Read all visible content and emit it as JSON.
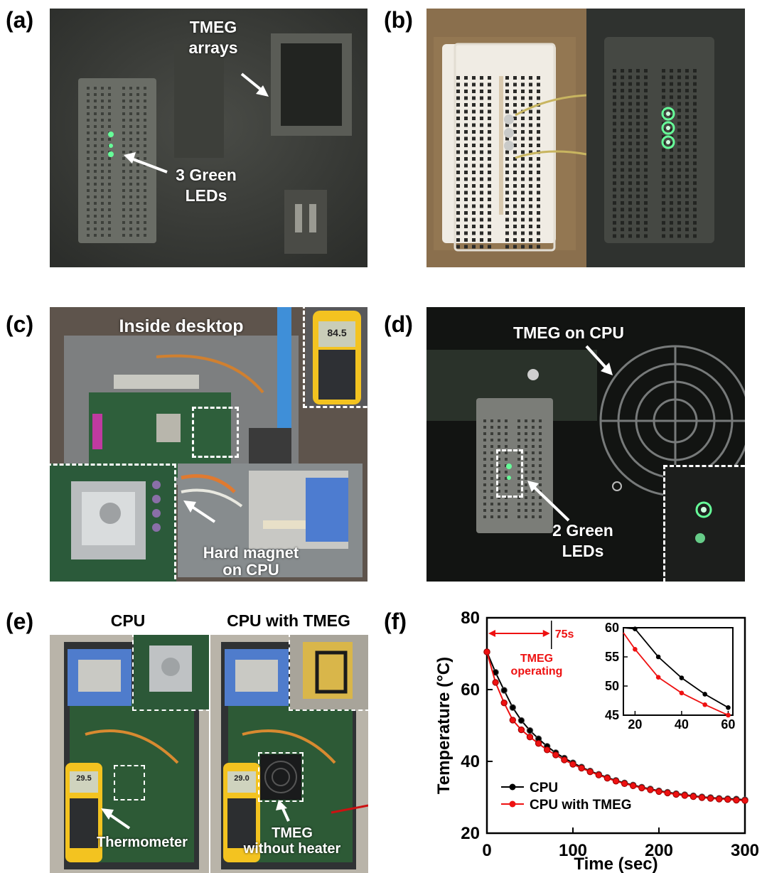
{
  "panels": {
    "a": {
      "label": "(a)",
      "annotations": {
        "tmeg": "TMEG\narrays",
        "leds": "3 Green\nLEDs"
      }
    },
    "b": {
      "label": "(b)"
    },
    "c": {
      "label": "(c)",
      "annotations": {
        "inside": "Inside desktop",
        "magnet": "Hard magnet\non CPU",
        "meter": "84.5"
      }
    },
    "d": {
      "label": "(d)",
      "annotations": {
        "tmeg": "TMEG on CPU",
        "leds": "2 Green\nLEDs"
      }
    },
    "e": {
      "label": "(e)",
      "titles": {
        "left": "CPU",
        "right": "CPU with TMEG"
      },
      "annotations": {
        "thermometer": "Thermometer",
        "tmeg": "TMEG\nwithout heater",
        "meter_left": "29.5",
        "meter_right": "29.0"
      }
    },
    "f": {
      "label": "(f)"
    }
  },
  "colors": {
    "cpu": "#000000",
    "tmeg": "#ee1111",
    "led_green": "#66ff99"
  },
  "chart_data": [
    {
      "type": "line",
      "xlabel": "Time (sec)",
      "ylabel": "Temperature (°C)",
      "xlim": [
        0,
        300
      ],
      "ylim": [
        20,
        80
      ],
      "xticks": [
        0,
        100,
        200,
        300
      ],
      "yticks": [
        20,
        40,
        60,
        80
      ],
      "annotation": {
        "label": "75s",
        "text": "TMEG\noperating",
        "x_start": 0,
        "x_end": 75
      },
      "legend": "bottom-left",
      "x": [
        0,
        10,
        20,
        30,
        40,
        50,
        60,
        70,
        80,
        90,
        100,
        110,
        120,
        130,
        140,
        150,
        160,
        170,
        180,
        190,
        200,
        210,
        220,
        230,
        240,
        250,
        260,
        270,
        280,
        290,
        300
      ],
      "series": [
        {
          "name": "CPU",
          "color": "#000000",
          "values": [
            70.5,
            64.8,
            59.8,
            55.0,
            51.4,
            48.6,
            46.3,
            44.2,
            42.4,
            40.9,
            39.6,
            38.4,
            37.3,
            36.4,
            35.5,
            34.7,
            34.0,
            33.4,
            32.8,
            32.3,
            31.8,
            31.4,
            31.0,
            30.7,
            30.4,
            30.1,
            29.9,
            29.7,
            29.6,
            29.5,
            29.3
          ]
        },
        {
          "name": "CPU with TMEG",
          "color": "#ee1111",
          "values": [
            70.5,
            62.0,
            56.3,
            51.5,
            48.8,
            46.8,
            45.0,
            43.2,
            41.8,
            40.4,
            39.2,
            38.1,
            37.1,
            36.2,
            35.3,
            34.5,
            33.8,
            33.2,
            32.6,
            32.1,
            31.6,
            31.2,
            30.8,
            30.5,
            30.2,
            29.9,
            29.7,
            29.5,
            29.4,
            29.2,
            29.1
          ]
        }
      ]
    },
    {
      "type": "line",
      "name": "inset",
      "xlim": [
        15,
        62
      ],
      "ylim": [
        45,
        60
      ],
      "xticks": [
        20,
        40,
        60
      ],
      "yticks": [
        45,
        50,
        55,
        60
      ],
      "x": [
        10,
        20,
        30,
        40,
        50,
        60
      ],
      "series": [
        {
          "name": "CPU",
          "color": "#000000",
          "values": [
            64.8,
            59.8,
            55.0,
            51.4,
            48.6,
            46.3
          ]
        },
        {
          "name": "CPU with TMEG",
          "color": "#ee1111",
          "values": [
            62.0,
            56.3,
            51.5,
            48.8,
            46.8,
            45.0
          ]
        }
      ]
    }
  ]
}
